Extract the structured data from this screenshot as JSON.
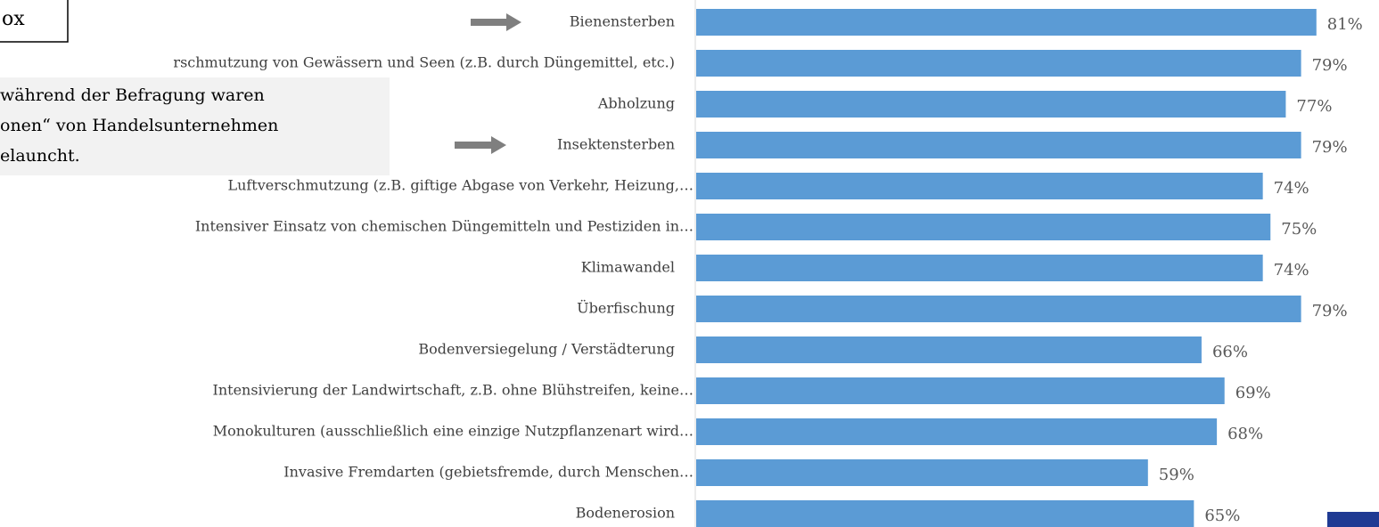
{
  "chart_data": {
    "type": "barh",
    "categories": [
      "Bienensterben",
      "rschmutzung von Gewässern und Seen (z.B. durch Düngemittel, etc.)",
      "Abholzung",
      "Insektensterben",
      "Luftverschmutzung (z.B. giftige Abgase von Verkehr, Heizung,…",
      "Intensiver Einsatz von chemischen Düngemitteln und Pestiziden in…",
      "Klimawandel",
      "Überfischung",
      "Bodenversiegelung / Verstädterung",
      "Intensivierung der Landwirtschaft, z.B. ohne Blühstreifen, keine…",
      "Monokulturen (ausschließlich eine einzige Nutzpflanzenart wird…",
      "Invasive Fremdarten (gebietsfremde, durch Menschen…",
      "Bodenerosion"
    ],
    "values": [
      81,
      79,
      77,
      79,
      74,
      75,
      74,
      79,
      66,
      69,
      68,
      59,
      65
    ],
    "value_labels": [
      "81%",
      "79%",
      "77%",
      "79%",
      "74%",
      "75%",
      "74%",
      "79%",
      "66%",
      "69%",
      "68%",
      "59%",
      "65%"
    ],
    "color": "#5b9bd5"
  },
  "annotations": {
    "box_label": "ox",
    "note_lines": [
      "während der Befragung waren",
      "onen“ von Handelsunternehmen",
      "elauncht."
    ]
  }
}
